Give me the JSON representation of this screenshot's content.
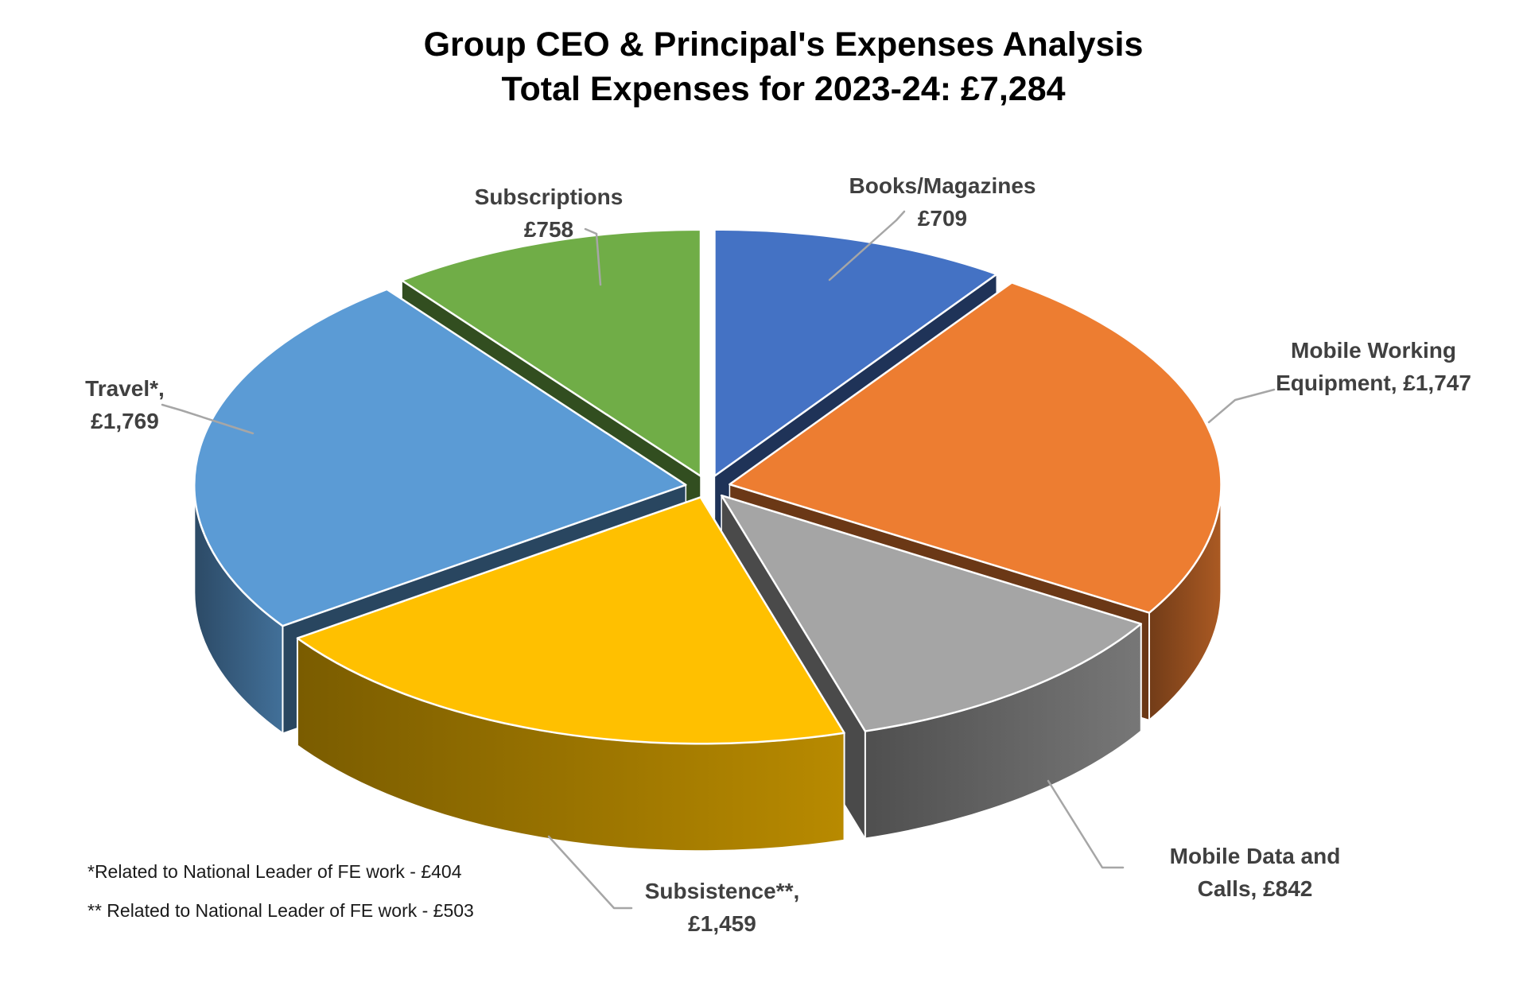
{
  "chart_data": {
    "type": "pie",
    "effect": "3d-exploded",
    "title": "Group CEO & Principal's Expenses Analysis",
    "subtitle": "Total Expenses for 2023-24: £7,284",
    "total": 7284,
    "total_display": "£7,284",
    "currency": "£",
    "start_angle_deg": 0,
    "direction": "clockwise",
    "legend_position": "none (direct data labels with leader lines)",
    "segments": [
      {
        "name": "Books/Magazines",
        "value": 709,
        "display_value": "£709",
        "label_lines": [
          "Books/Magazines",
          "£709"
        ],
        "color": "#4472C4"
      },
      {
        "name": "Mobile Working Equipment",
        "value": 1747,
        "display_value": "£1,747",
        "label_lines": [
          "Mobile Working",
          "Equipment, £1,747"
        ],
        "color": "#ED7D31"
      },
      {
        "name": "Mobile Data and Calls",
        "value": 842,
        "display_value": "£842",
        "label_lines": [
          "Mobile Data and",
          "Calls, £842"
        ],
        "color": "#A5A5A5"
      },
      {
        "name": "Subsistence**",
        "value": 1459,
        "display_value": "£1,459",
        "label_lines": [
          "Subsistence**,",
          "£1,459"
        ],
        "color": "#FFC000"
      },
      {
        "name": "Travel*",
        "value": 1769,
        "display_value": "£1,769",
        "label_lines": [
          "Travel*,",
          "£1,769"
        ],
        "color": "#5B9BD5"
      },
      {
        "name": "Subscriptions",
        "value": 758,
        "display_value": "£758",
        "label_lines": [
          "Subscriptions",
          "£758"
        ],
        "color": "#70AD47"
      }
    ],
    "footnotes": [
      "*Related to National Leader of FE work - £404",
      "** Related to National Leader of FE work - £503"
    ]
  },
  "styles": {
    "title_color": "#000000",
    "label_color": "#404040",
    "leader_line_color": "#A6A6A6",
    "slice_outline_color": "#FFFFFF",
    "background": "#FFFFFF"
  }
}
